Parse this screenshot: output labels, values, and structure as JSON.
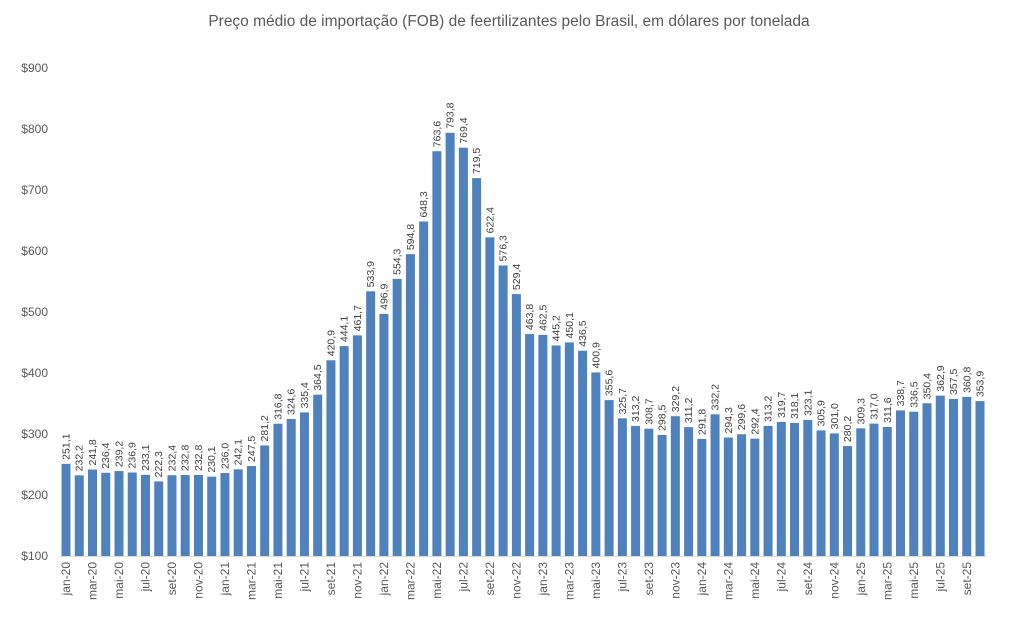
{
  "chart_data": {
    "type": "bar",
    "title": "Preço médio de importação (FOB) de feertilizantes pelo Brasil, em dólares por tonelada",
    "xlabel": "",
    "ylabel": "",
    "ylim": [
      100,
      900
    ],
    "yticks": [
      "$100",
      "$200",
      "$300",
      "$400",
      "$500",
      "$600",
      "$700",
      "$800",
      "$900"
    ],
    "ytick_values": [
      100,
      200,
      300,
      400,
      500,
      600,
      700,
      800,
      900
    ],
    "grid": false,
    "bar_color": "#4f81bd",
    "categories": [
      "jan-20",
      "fev-20",
      "mar-20",
      "abr-20",
      "mai-20",
      "jun-20",
      "jul-20",
      "ago-20",
      "set-20",
      "out-20",
      "nov-20",
      "dez-20",
      "jan-21",
      "fev-21",
      "mar-21",
      "abr-21",
      "mai-21",
      "jun-21",
      "jul-21",
      "ago-21",
      "set-21",
      "out-21",
      "nov-21",
      "dez-21",
      "jan-22",
      "fev-22",
      "mar-22",
      "abr-22",
      "mai-22",
      "jun-22",
      "jul-22",
      "ago-22",
      "set-22",
      "out-22",
      "nov-22",
      "dez-22",
      "jan-23",
      "fev-23",
      "mar-23",
      "abr-23",
      "mai-23",
      "jun-23",
      "jul-23",
      "ago-23",
      "set-23",
      "out-23",
      "nov-23",
      "dez-23",
      "jan-24",
      "fev-24",
      "mar-24",
      "abr-24",
      "mai-24",
      "jun-24",
      "jul-24",
      "ago-24",
      "set-24",
      "out-24",
      "nov-24",
      "dez-24",
      "jan-25",
      "fev-25",
      "mar-25",
      "abr-25",
      "mai-25",
      "jun-25",
      "jul-25",
      "ago-25",
      "set-25",
      "out-25"
    ],
    "visible_tick_labels": [
      "jan-20",
      "mar-20",
      "mai-20",
      "jul-20",
      "set-20",
      "nov-20",
      "jan-21",
      "mar-21",
      "mai-21",
      "jul-21",
      "set-21",
      "nov-21",
      "jan-22",
      "mar-22",
      "mai-22",
      "jul-22",
      "set-22",
      "nov-22",
      "jan-23",
      "mar-23",
      "mai-23",
      "jul-23",
      "set-23",
      "nov-23",
      "jan-24",
      "mar-24",
      "mai-24",
      "jul-24",
      "set-24",
      "nov-24",
      "jan-25",
      "mar-25",
      "mai-25",
      "jul-25",
      "set-25"
    ],
    "values": [
      251.1,
      232.2,
      241.8,
      236.4,
      239.2,
      236.9,
      233.1,
      222.3,
      232.4,
      232.8,
      232.8,
      230.1,
      236.0,
      242.1,
      247.5,
      281.2,
      316.8,
      324.6,
      335.4,
      364.5,
      420.9,
      444.1,
      461.7,
      533.9,
      496.9,
      554.3,
      594.8,
      648.3,
      763.6,
      793.8,
      769.4,
      719.5,
      622.4,
      576.3,
      529.4,
      463.8,
      462.5,
      445.2,
      450.1,
      436.5,
      400.9,
      355.6,
      325.7,
      313.2,
      308.7,
      298.5,
      329.2,
      311.2,
      291.8,
      332.2,
      294.3,
      299.6,
      292.4,
      313.2,
      319.7,
      318.1,
      323.1,
      305.9,
      301.0,
      280.2,
      309.3,
      317.0,
      311.6,
      338.7,
      336.5,
      350.4,
      362.9,
      357.5,
      360.8,
      353.9
    ],
    "data_labels": [
      "251,1",
      "232,2",
      "241,8",
      "236,4",
      "239,2",
      "236,9",
      "233,1",
      "222,3",
      "232,4",
      "232,8",
      "232,8",
      "230,1",
      "236,0",
      "242,1",
      "247,5",
      "281,2",
      "316,8",
      "324,6",
      "335,4",
      "364,5",
      "420,9",
      "444,1",
      "461,7",
      "533,9",
      "496,9",
      "554,3",
      "594,8",
      "648,3",
      "763,6",
      "793,8",
      "769,4",
      "719,5",
      "622,4",
      "576,3",
      "529,4",
      "463,8",
      "462,5",
      "445,2",
      "450,1",
      "436,5",
      "400,9",
      "355,6",
      "325,7",
      "313,2",
      "308,7",
      "298,5",
      "329,2",
      "311,2",
      "291,8",
      "332,2",
      "294,3",
      "299,6",
      "292,4",
      "313,2",
      "319,7",
      "318,1",
      "323,1",
      "305,9",
      "301,0",
      "280,2",
      "309,3",
      "317,0",
      "311,6",
      "338,7",
      "336,5",
      "350,4",
      "362,9",
      "357,5",
      "360,8",
      "353,9"
    ]
  }
}
